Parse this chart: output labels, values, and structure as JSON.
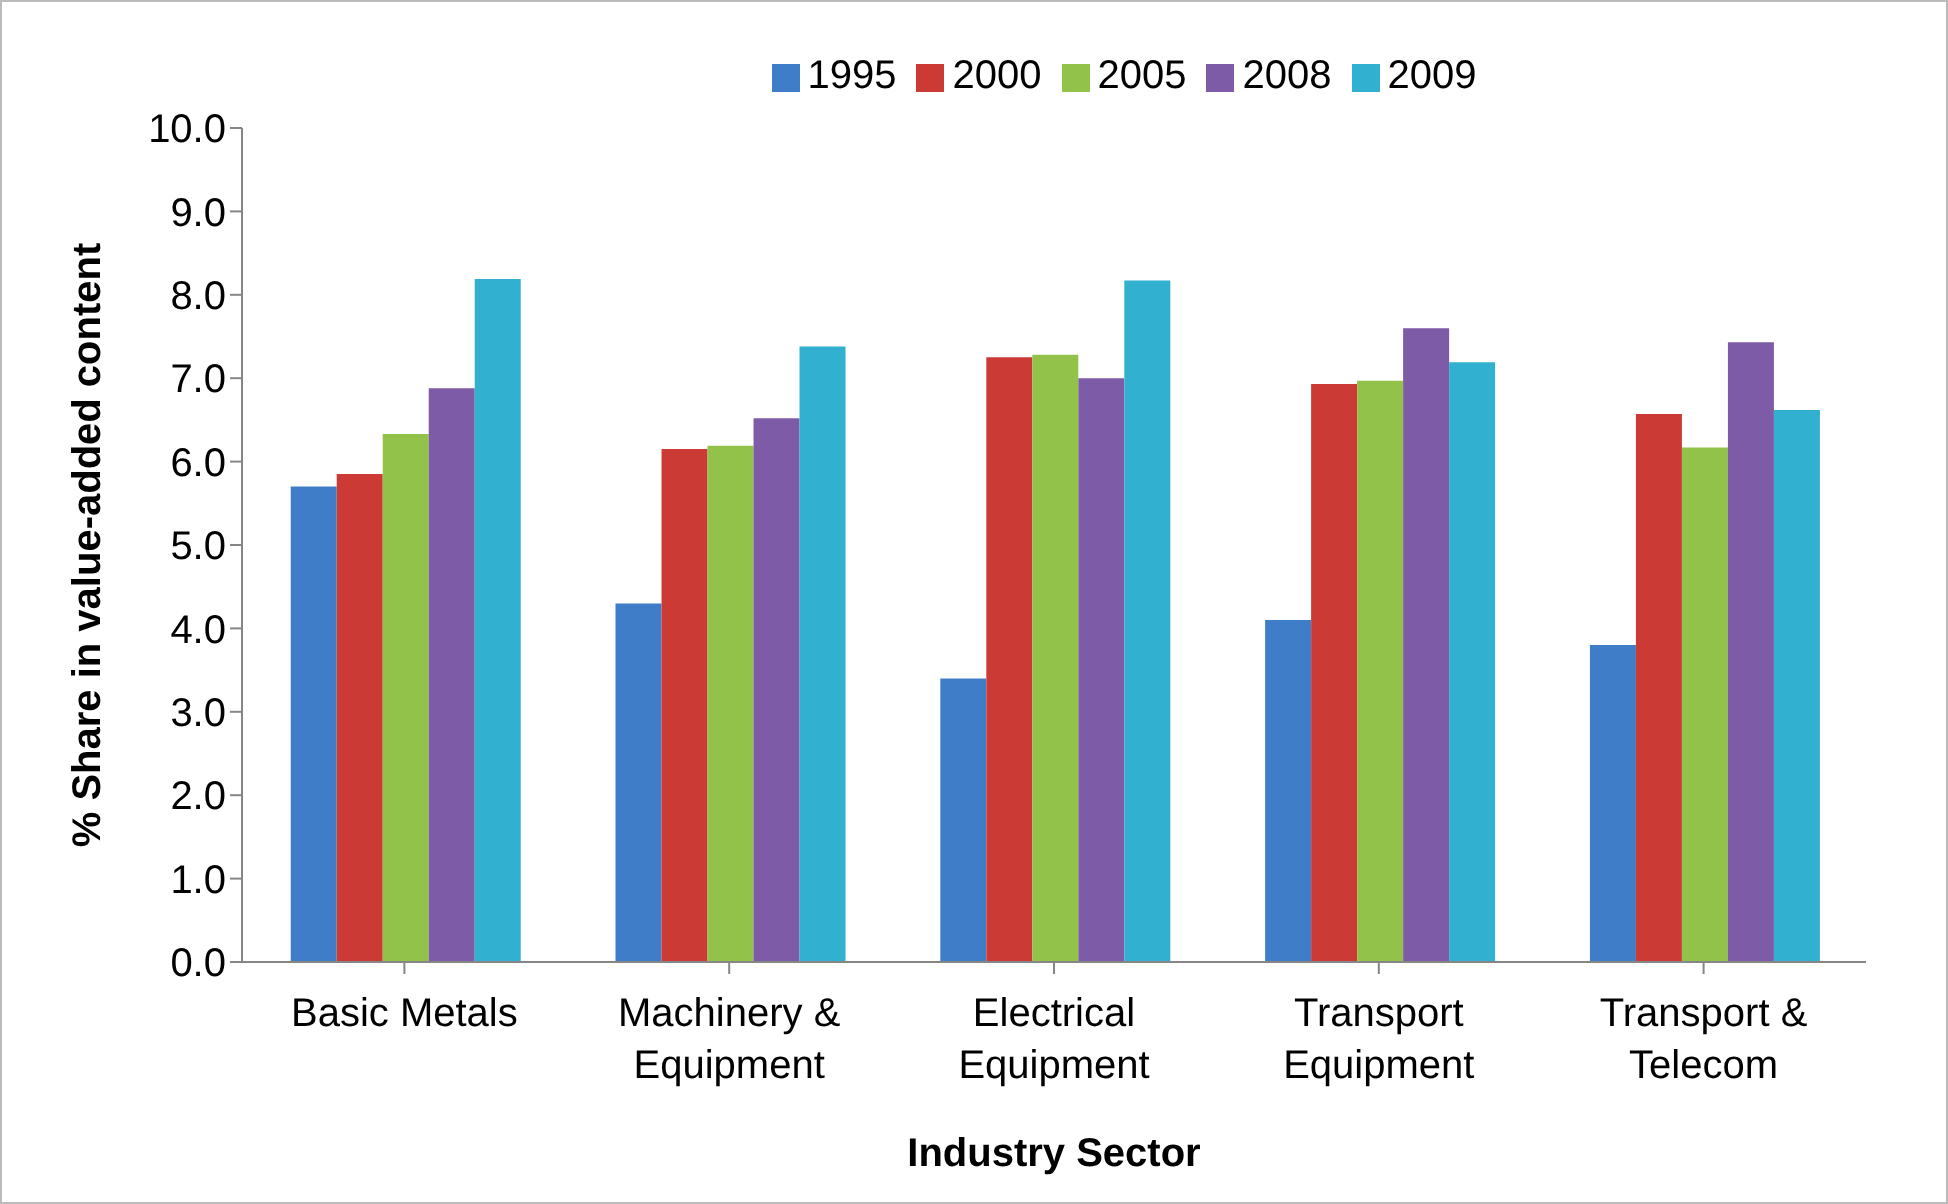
{
  "chart_data": {
    "type": "bar",
    "xlabel": "Industry Sector",
    "ylabel": "% Share in value-added content",
    "categories": [
      "Basic Metals",
      "Machinery & Equipment",
      "Electrical Equipment",
      "Transport Equipment",
      "Transport & Telecom"
    ],
    "series": [
      {
        "name": "1995",
        "color": "#3f7dc8",
        "values": [
          5.7,
          4.3,
          3.4,
          4.1,
          3.8
        ]
      },
      {
        "name": "2000",
        "color": "#cc3a36",
        "values": [
          5.85,
          6.15,
          7.25,
          6.93,
          6.57
        ]
      },
      {
        "name": "2005",
        "color": "#92c24a",
        "values": [
          6.33,
          6.19,
          7.28,
          6.97,
          6.17
        ]
      },
      {
        "name": "2008",
        "color": "#7d5ba6",
        "values": [
          6.88,
          6.52,
          7.0,
          7.6,
          7.43
        ]
      },
      {
        "name": "2009",
        "color": "#31b0cf",
        "values": [
          8.19,
          7.38,
          8.17,
          7.19,
          6.62
        ]
      }
    ],
    "ylim": [
      0,
      10
    ],
    "yticks": [
      {
        "value": 0,
        "label": "0.0"
      },
      {
        "value": 1,
        "label": "1.0"
      },
      {
        "value": 2,
        "label": "2.0"
      },
      {
        "value": 3,
        "label": "3.0"
      },
      {
        "value": 4,
        "label": "4.0"
      },
      {
        "value": 5,
        "label": "5.0"
      },
      {
        "value": 6,
        "label": "6.0"
      },
      {
        "value": 7,
        "label": "7.0"
      },
      {
        "value": 8,
        "label": "8.0"
      },
      {
        "value": 9,
        "label": "9.0"
      },
      {
        "value": 10,
        "label": "10.0"
      }
    ],
    "grid": false,
    "legend": "top"
  }
}
